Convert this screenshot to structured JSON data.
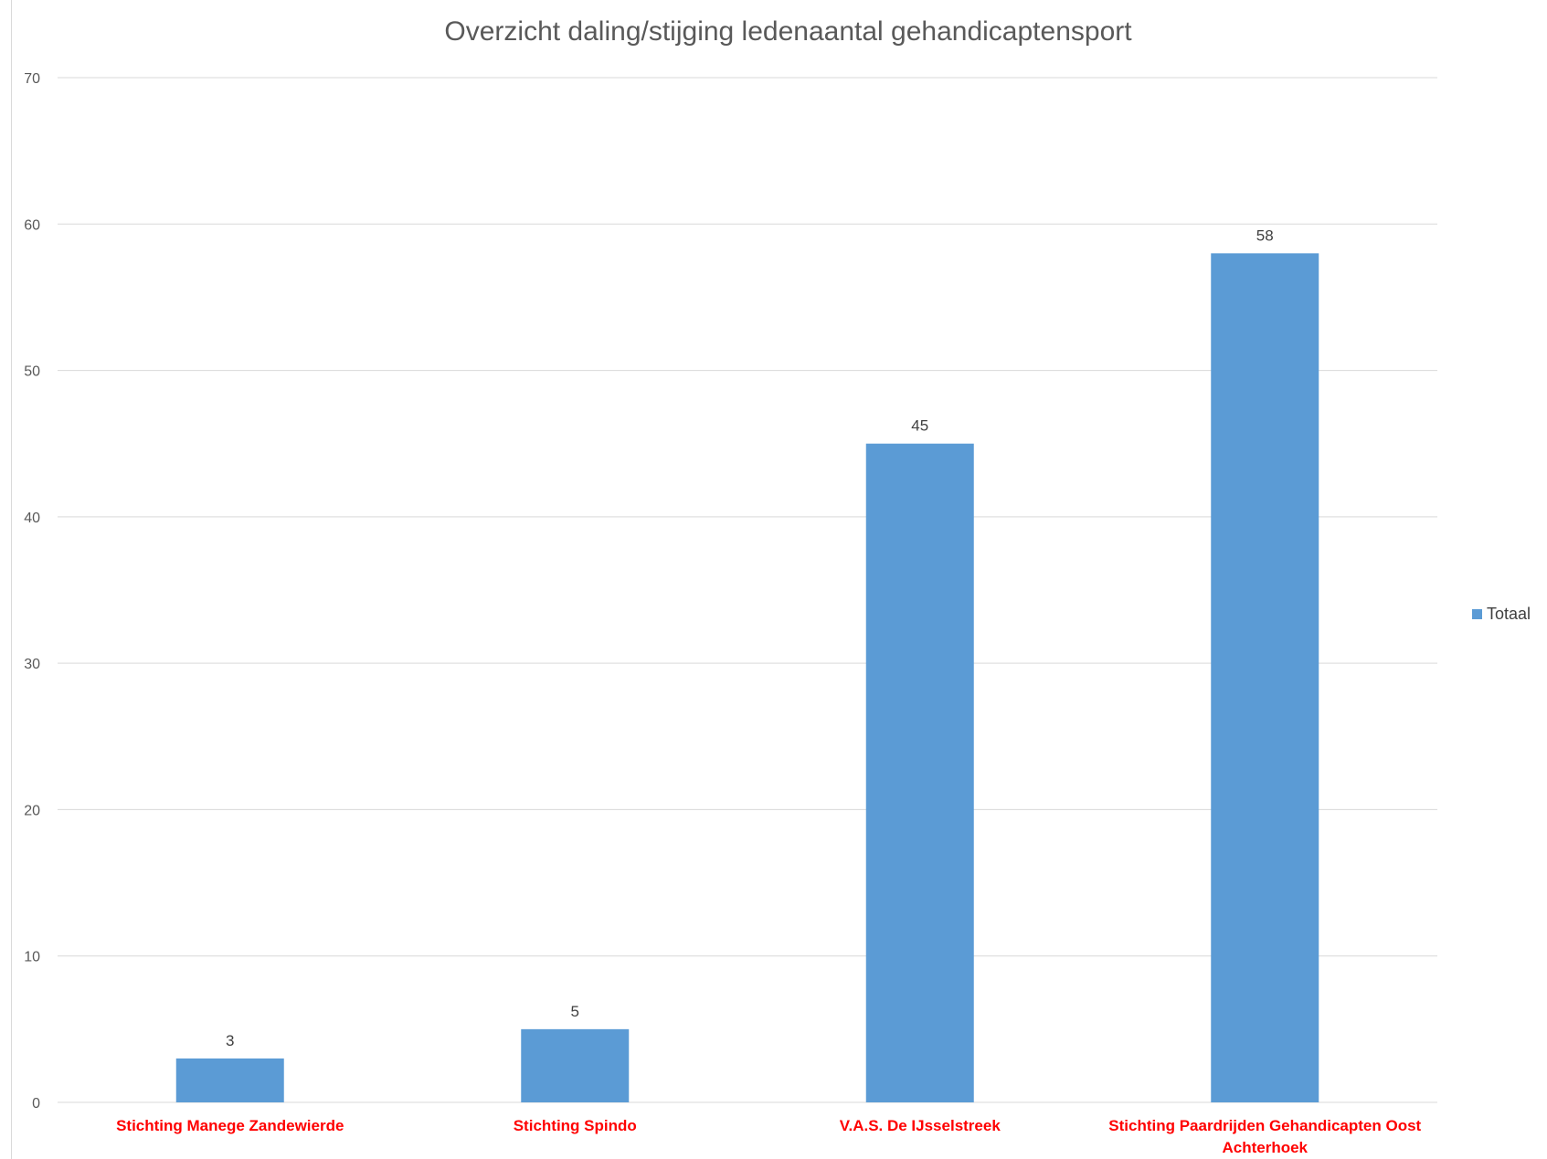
{
  "chart_data": {
    "type": "bar",
    "title": "Overzicht daling/stijging ledenaantal gehandicaptensport",
    "categories": [
      "Stichting Manege Zandewierde",
      "Stichting Spindo",
      "V.A.S. De IJsselstreek",
      [
        "Stichting Paardrijden Gehandicapten Oost",
        "Achterhoek"
      ]
    ],
    "series": [
      {
        "name": "Totaal",
        "values": [
          3,
          5,
          45,
          58
        ],
        "color": "#5b9bd5"
      }
    ],
    "data_labels": [
      "3",
      "5",
      "45",
      "58"
    ],
    "yticks": [
      "0",
      "10",
      "20",
      "30",
      "40",
      "50",
      "60",
      "70"
    ],
    "ylim": [
      0,
      70
    ],
    "xlabel": "",
    "ylabel": "",
    "grid": true,
    "gridline_color": "#d9d9d9",
    "category_label_color": "#ff0000",
    "legend_position": "right"
  }
}
